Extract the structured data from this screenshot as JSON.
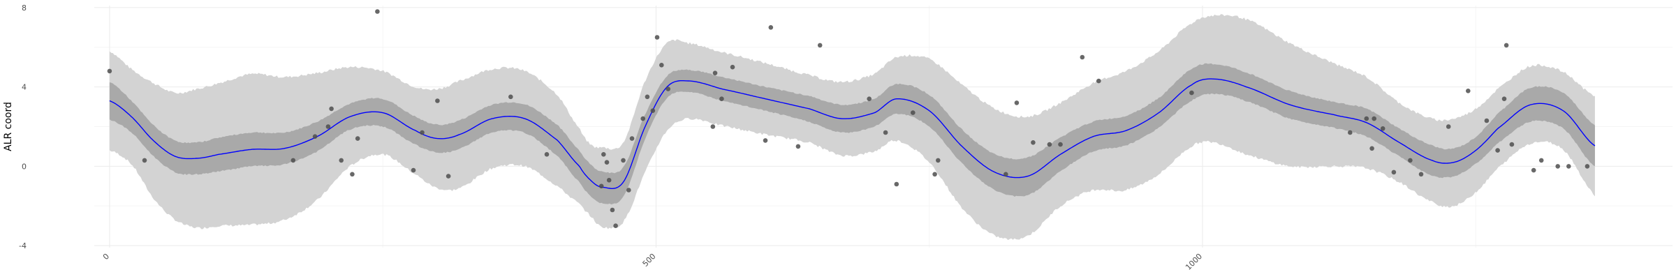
{
  "chart_data": {
    "type": "line",
    "title": "",
    "xlabel": "",
    "ylabel": "ALR coord",
    "xlim": [
      -14,
      1430
    ],
    "ylim": [
      -4.1,
      8.1
    ],
    "x_ticks": [
      0,
      500,
      1000
    ],
    "x_tick_labels": [
      "0",
      "500",
      "1000"
    ],
    "y_ticks": [
      -4,
      0,
      4,
      8
    ],
    "y_tick_labels": [
      "-4",
      "0",
      "4",
      "8"
    ],
    "grid": true,
    "legend": "none",
    "colors": {
      "line": "#0000ff",
      "inner_band": "#a9a9a9",
      "outer_band": "#d3d3d3",
      "points": "#4d4d4d"
    },
    "smooth": {
      "x": [
        0,
        20,
        40,
        60,
        80,
        100,
        130,
        160,
        190,
        220,
        250,
        280,
        300,
        320,
        350,
        380,
        410,
        430,
        440,
        450,
        470,
        490,
        510,
        530,
        560,
        600,
        640,
        670,
        700,
        720,
        750,
        780,
        810,
        840,
        870,
        900,
        930,
        960,
        990,
        1010,
        1040,
        1080,
        1120,
        1150,
        1180,
        1210,
        1230,
        1250,
        1270,
        1300,
        1330,
        1360
      ],
      "y": [
        3.3,
        2.5,
        1.3,
        0.5,
        0.4,
        0.6,
        0.85,
        0.9,
        1.5,
        2.5,
        2.7,
        1.8,
        1.4,
        1.6,
        2.4,
        2.4,
        1.3,
        0.0,
        -0.7,
        -1.05,
        -0.8,
        2.0,
        4.0,
        4.3,
        3.9,
        3.4,
        2.9,
        2.4,
        2.7,
        3.4,
        2.8,
        1.0,
        -0.3,
        -0.5,
        0.6,
        1.5,
        1.8,
        2.7,
        4.1,
        4.4,
        4.0,
        3.1,
        2.6,
        2.2,
        1.2,
        0.3,
        0.2,
        0.8,
        1.9,
        3.1,
        2.8,
        1.0
      ],
      "inner_halfwidth": [
        0.95,
        0.8,
        0.78,
        0.8,
        0.8,
        0.85,
        0.85,
        0.8,
        0.75,
        0.65,
        0.7,
        0.7,
        0.7,
        0.72,
        0.7,
        0.72,
        0.78,
        0.8,
        0.8,
        0.8,
        0.75,
        0.62,
        0.55,
        0.55,
        0.6,
        0.6,
        0.65,
        0.7,
        0.7,
        0.75,
        0.8,
        0.85,
        0.9,
        0.95,
        0.85,
        0.75,
        0.75,
        0.75,
        0.8,
        0.75,
        0.72,
        0.7,
        0.65,
        0.7,
        0.7,
        0.75,
        0.7,
        0.68,
        0.75,
        0.85,
        0.9,
        1.05
      ],
      "outer_halfwidth": [
        2.5,
        2.4,
        2.9,
        3.2,
        3.5,
        3.6,
        3.8,
        3.6,
        3.2,
        2.5,
        2.1,
        2.2,
        2.5,
        2.7,
        2.5,
        2.4,
        2.3,
        1.9,
        1.8,
        2.0,
        2.0,
        2.3,
        2.2,
        1.9,
        1.85,
        1.8,
        1.7,
        1.85,
        1.95,
        2.1,
        2.6,
        3.1,
        3.2,
        3.0,
        2.6,
        2.7,
        3.0,
        3.1,
        3.1,
        3.2,
        3.4,
        3.1,
        2.6,
        2.3,
        2.0,
        2.1,
        2.2,
        2.1,
        2.0,
        1.95,
        1.95,
        2.5
      ]
    },
    "points": {
      "x": [
        0,
        32,
        168,
        188,
        200,
        203,
        212,
        222,
        227,
        245,
        278,
        286,
        300,
        310,
        367,
        400,
        450,
        452,
        455,
        457,
        460,
        463,
        470,
        475,
        478,
        488,
        492,
        497,
        501,
        505,
        511,
        552,
        554,
        560,
        570,
        600,
        605,
        630,
        650,
        695,
        710,
        720,
        735,
        755,
        758,
        820,
        830,
        845,
        860,
        870,
        890,
        905,
        990,
        1135,
        1150,
        1155,
        1157,
        1165,
        1175,
        1190,
        1200,
        1225,
        1243,
        1260,
        1270,
        1276,
        1278,
        1283,
        1303,
        1310,
        1325,
        1335,
        1352
      ],
      "y": [
        4.8,
        0.3,
        0.3,
        1.5,
        2.0,
        2.9,
        0.3,
        -0.4,
        1.4,
        7.8,
        -0.2,
        1.7,
        3.3,
        -0.5,
        3.5,
        0.6,
        -1.0,
        0.6,
        0.2,
        -0.7,
        -2.2,
        -3.0,
        0.3,
        -1.2,
        1.4,
        2.4,
        3.5,
        2.8,
        6.5,
        5.1,
        3.9,
        2.0,
        4.7,
        3.4,
        5.0,
        1.3,
        7.0,
        1.0,
        6.1,
        3.4,
        1.7,
        -0.9,
        2.7,
        -0.4,
        0.3,
        -0.4,
        3.2,
        1.2,
        1.1,
        1.1,
        5.5,
        4.3,
        3.7,
        1.7,
        2.4,
        0.9,
        2.4,
        1.9,
        -0.3,
        0.3,
        -0.4,
        2.0,
        3.8,
        2.3,
        0.8,
        3.4,
        6.1,
        1.1,
        -0.2,
        0.3,
        0.0,
        0.0,
        0.0
      ]
    }
  }
}
